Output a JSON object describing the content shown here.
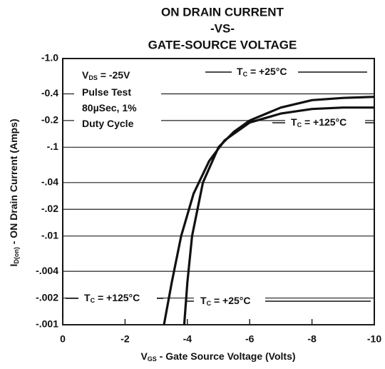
{
  "chart_data": {
    "type": "line",
    "title": [
      "ON DRAIN CURRENT",
      "-VS-",
      "GATE-SOURCE VOLTAGE"
    ],
    "x_label": [
      "V",
      "GS",
      " - Gate Source Voltage (Volts)"
    ],
    "y_label": [
      "I",
      "D(on)",
      " - ON Drain Current (Amps)"
    ],
    "xlim": [
      0,
      -10
    ],
    "xticks": [
      0,
      -2,
      -4,
      -6,
      -8,
      -10
    ],
    "ylim": [
      -0.001,
      -1
    ],
    "yticks": [
      {
        "value": -1,
        "label": "-1.0"
      },
      -0.4,
      -0.2,
      {
        "value": -0.1,
        "label": "-.1"
      },
      {
        "value": -0.04,
        "label": "-.04"
      },
      {
        "value": -0.02,
        "label": "-.02"
      },
      {
        "value": -0.01,
        "label": "-.01"
      },
      {
        "value": -0.004,
        "label": "-.004"
      },
      {
        "value": -0.002,
        "label": "-.002"
      },
      {
        "value": -0.001,
        "label": "-.001"
      }
    ],
    "log_y": true,
    "grid": true,
    "series": [
      {
        "color": "#111111",
        "x": [
          -3.9,
          -4.0,
          -4.15,
          -4.5,
          -5,
          -5.5,
          -6,
          -7,
          -8,
          -9,
          -10
        ],
        "values": [
          -0.001,
          -0.003,
          -0.01,
          -0.04,
          -0.1,
          -0.15,
          -0.2,
          -0.28,
          -0.34,
          -0.36,
          -0.37
        ]
      },
      {
        "color": "#111111",
        "x": [
          -3.25,
          -3.5,
          -3.8,
          -4.2,
          -4.7,
          -5.2,
          -6,
          -7,
          -8,
          -9,
          -10
        ],
        "values": [
          -0.001,
          -0.003,
          -0.01,
          -0.03,
          -0.07,
          -0.12,
          -0.19,
          -0.24,
          -0.27,
          -0.28,
          -0.28
        ]
      }
    ],
    "annotations": [
      {
        "parts": [
          "V",
          "DS",
          " = -25V"
        ]
      },
      {
        "parts": [
          "Pulse Test"
        ]
      },
      {
        "parts": [
          "80µSec, 1%"
        ]
      },
      {
        "parts": [
          "Duty Cycle"
        ]
      },
      {
        "parts": [
          "T",
          "C",
          " = +25°C"
        ]
      },
      {
        "parts": [
          "T",
          "C",
          " = +125°C"
        ]
      },
      {
        "parts": [
          "T",
          "C",
          " = +125°C"
        ]
      },
      {
        "parts": [
          "T",
          "C",
          " = +25°C"
        ]
      }
    ]
  }
}
